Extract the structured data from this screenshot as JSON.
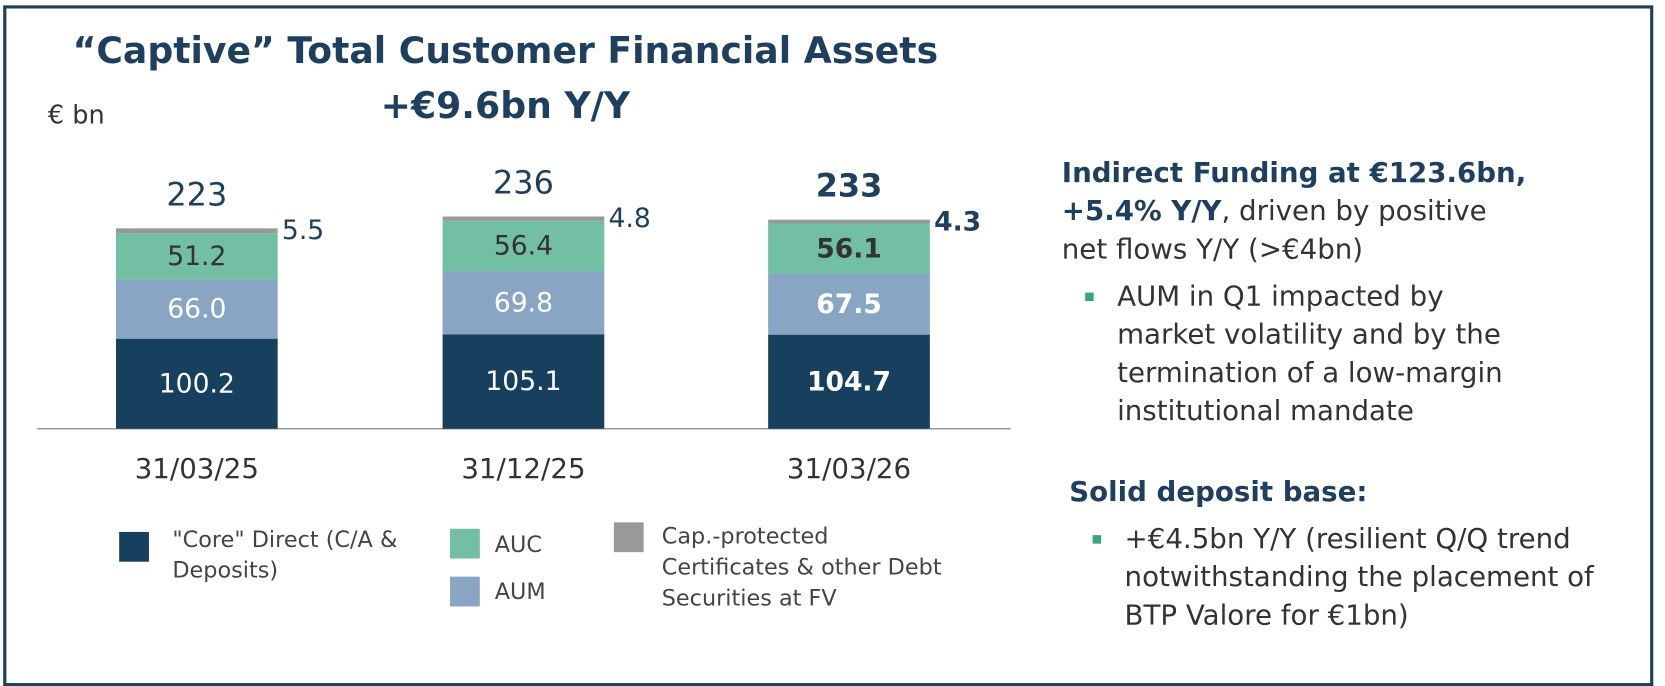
{
  "chart_data": {
    "type": "stacked_bar",
    "title": "“Captive” Total Customer Financial Assets",
    "subtitle": "+€9.6bn Y/Y",
    "unit_label": "€ bn",
    "categories": [
      "31/03/25",
      "31/12/25",
      "31/03/26"
    ],
    "series": [
      {
        "name": "\"Core\" Direct (C/A & Deposits)",
        "color": "#17405f",
        "label_color": "#ffffff",
        "values": [
          100.2,
          105.1,
          104.7
        ],
        "value_labels": [
          "100.2",
          "105.1",
          "104.7"
        ]
      },
      {
        "name": "AUM",
        "color": "#88a6c4",
        "label_color": "#ffffff",
        "values": [
          66.0,
          69.8,
          67.5
        ],
        "value_labels": [
          "66.0",
          "69.8",
          "67.5"
        ]
      },
      {
        "name": "AUC",
        "color": "#72bfa3",
        "label_color": "#333333",
        "values": [
          51.2,
          56.4,
          56.1
        ],
        "value_labels": [
          "51.2",
          "56.4",
          "56.1"
        ]
      },
      {
        "name": "Cap.-protected Certificates & other Debt Securities at FV",
        "color": "#999999",
        "label_color": "#1f3f5f",
        "label_outside": true,
        "values": [
          5.5,
          4.8,
          4.3
        ],
        "value_labels": [
          "5.5",
          "4.8",
          "4.3"
        ]
      }
    ],
    "totals": [
      223,
      236,
      233
    ],
    "bold_last": true
  },
  "notes": [
    {
      "heading": "Indirect Funding at €123.6bn, +5.4% Y/Y",
      "text": ", driven by positive net flows Y/Y (>€4bn)",
      "bullets": [
        "AUM in Q1 impacted by market volatility and by the termination of a low-margin institutional mandate"
      ]
    },
    {
      "heading": "Solid deposit base:",
      "text": "",
      "bullets": [
        "+€4.5bn Y/Y (resilient Q/Q trend notwithstanding the placement of BTP Valore for €1bn)"
      ]
    }
  ]
}
